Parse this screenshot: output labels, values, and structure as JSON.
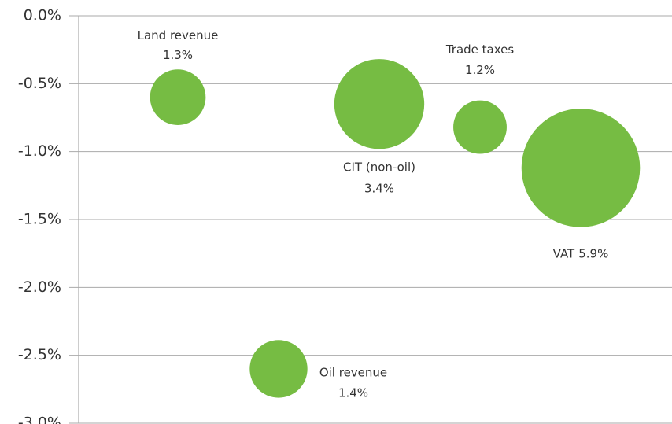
{
  "chart_data": {
    "type": "bubble",
    "categories": [
      "Land revenue",
      "Oil revenue",
      "CIT (non-oil)",
      "Trade taxes",
      "VAT"
    ],
    "values": [
      -0.6,
      -2.6,
      -0.65,
      -0.82,
      -1.12
    ],
    "sizes": [
      1.3,
      1.4,
      3.4,
      1.2,
      5.9
    ],
    "value_labels": [
      "1.3%",
      "1.4%",
      "3.4%",
      "1.2%",
      "5.9%"
    ],
    "color": "#76bc43",
    "ylim": [
      -3.0,
      0.0
    ],
    "yticks": [
      {
        "value": 0.0,
        "label": "0.0%"
      },
      {
        "value": -0.5,
        "label": "-0.5%"
      },
      {
        "value": -1.0,
        "label": "-1.0%"
      },
      {
        "value": -1.5,
        "label": "-1.5%"
      },
      {
        "value": -2.0,
        "label": "-2.0%"
      },
      {
        "value": -2.5,
        "label": "-2.5%"
      },
      {
        "value": -3.0,
        "label": "-3.0%"
      }
    ],
    "grid": true
  }
}
